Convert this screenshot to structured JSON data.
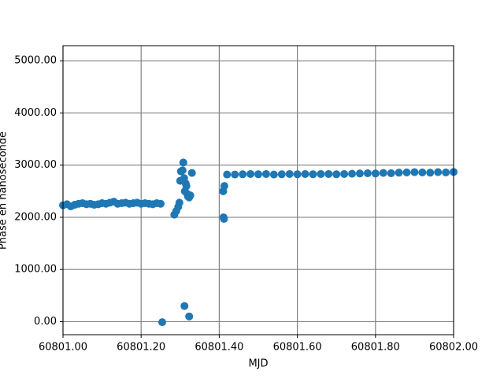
{
  "chart_data": {
    "type": "scatter",
    "x_label": "MJD",
    "y_label": "Phase en nanoseconde",
    "xlim": [
      60801.0,
      60802.0
    ],
    "ylim": [
      -250,
      5290
    ],
    "xticks": [
      {
        "value": 60801.0,
        "label": "60801.00"
      },
      {
        "value": 60801.2,
        "label": "60801.20"
      },
      {
        "value": 60801.4,
        "label": "60801.40"
      },
      {
        "value": 60801.6,
        "label": "60801.60"
      },
      {
        "value": 60801.8,
        "label": "60801.80"
      },
      {
        "value": 60802.0,
        "label": "60802.00"
      }
    ],
    "yticks": [
      {
        "value": 0,
        "label": "0.00"
      },
      {
        "value": 1000,
        "label": "1000.00"
      },
      {
        "value": 2000,
        "label": "2000.00"
      },
      {
        "value": 3000,
        "label": "3000.00"
      },
      {
        "value": 4000,
        "label": "4000.00"
      },
      {
        "value": 5000,
        "label": "5000.00"
      }
    ],
    "grid": true,
    "series": [
      {
        "color": "#1f77b4",
        "x": [
          60801.0,
          60801.01,
          60801.02,
          60801.03,
          60801.04,
          60801.05,
          60801.06,
          60801.07,
          60801.08,
          60801.09,
          60801.1,
          60801.11,
          60801.12,
          60801.13,
          60801.14,
          60801.15,
          60801.16,
          60801.17,
          60801.18,
          60801.19,
          60801.2,
          60801.21,
          60801.22,
          60801.23,
          60801.24,
          60801.25,
          60801.254,
          60801.285,
          60801.29,
          60801.295,
          60801.298,
          60801.3,
          60801.302,
          60801.306,
          60801.308,
          60801.31,
          60801.312,
          60801.314,
          60801.316,
          60801.318,
          60801.32,
          60801.323,
          60801.326,
          60801.33,
          60801.311,
          60801.323,
          60801.41,
          60801.411,
          60801.412,
          60801.413,
          60801.42,
          60801.44,
          60801.46,
          60801.48,
          60801.5,
          60801.52,
          60801.54,
          60801.56,
          60801.58,
          60801.6,
          60801.62,
          60801.64,
          60801.66,
          60801.68,
          60801.7,
          60801.72,
          60801.74,
          60801.76,
          60801.78,
          60801.8,
          60801.82,
          60801.84,
          60801.86,
          60801.88,
          60801.9,
          60801.92,
          60801.94,
          60801.96,
          60801.98,
          60802.0
        ],
        "values": [
          2230,
          2250,
          2210,
          2240,
          2260,
          2270,
          2250,
          2260,
          2240,
          2250,
          2270,
          2260,
          2280,
          2300,
          2260,
          2270,
          2280,
          2260,
          2270,
          2280,
          2260,
          2270,
          2260,
          2250,
          2270,
          2260,
          -10,
          2050,
          2120,
          2200,
          2280,
          2700,
          2880,
          2900,
          3050,
          2750,
          2500,
          2650,
          2600,
          2450,
          2400,
          2380,
          2420,
          2850,
          300,
          100,
          2500,
          2000,
          1970,
          2600,
          2820,
          2820,
          2825,
          2830,
          2825,
          2830,
          2820,
          2825,
          2830,
          2825,
          2830,
          2825,
          2830,
          2830,
          2825,
          2830,
          2835,
          2840,
          2845,
          2840,
          2850,
          2845,
          2855,
          2860,
          2865,
          2860,
          2855,
          2865,
          2860,
          2870
        ]
      }
    ]
  }
}
